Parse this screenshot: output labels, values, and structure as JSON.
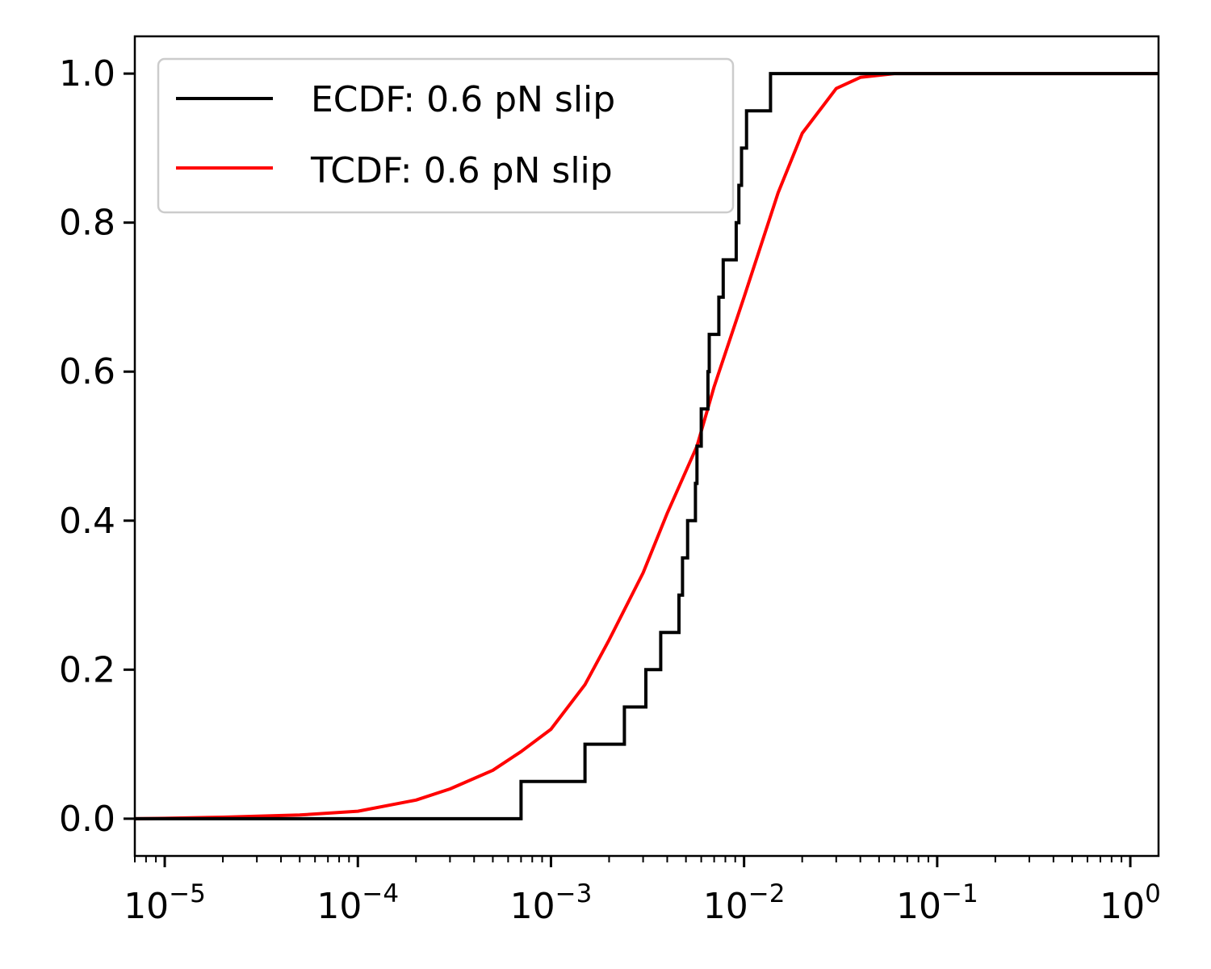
{
  "chart_data": {
    "type": "line",
    "title": "",
    "xlabel": "",
    "ylabel": "",
    "xscale": "log",
    "xlim": [
      7e-06,
      1.4
    ],
    "ylim": [
      -0.05,
      1.05
    ],
    "grid": false,
    "legend_placement": "top-left",
    "x_ticks": [
      {
        "value": 1e-05,
        "base": "10",
        "exp": "−5"
      },
      {
        "value": 0.0001,
        "base": "10",
        "exp": "−4"
      },
      {
        "value": 0.001,
        "base": "10",
        "exp": "−3"
      },
      {
        "value": 0.01,
        "base": "10",
        "exp": "−2"
      },
      {
        "value": 0.1,
        "base": "10",
        "exp": "−1"
      },
      {
        "value": 1,
        "base": "10",
        "exp": "0"
      }
    ],
    "y_ticks": [
      {
        "value": 0.0,
        "label": "0.0"
      },
      {
        "value": 0.2,
        "label": "0.2"
      },
      {
        "value": 0.4,
        "label": "0.4"
      },
      {
        "value": 0.6,
        "label": "0.6"
      },
      {
        "value": 0.8,
        "label": "0.8"
      },
      {
        "value": 1.0,
        "label": "1.0"
      }
    ],
    "series": [
      {
        "name": "ECDF: 0.6 pN slip",
        "color": "#000000",
        "style": "step",
        "x": [
          0.0007,
          0.0015,
          0.0024,
          0.0031,
          0.0037,
          0.0046,
          0.0048,
          0.0051,
          0.0056,
          0.0057,
          0.006,
          0.0065,
          0.0066,
          0.0074,
          0.0078,
          0.0091,
          0.0094,
          0.0097,
          0.0103,
          0.0137
        ],
        "y": [
          0.05,
          0.1,
          0.15,
          0.2,
          0.25,
          0.3,
          0.35,
          0.4,
          0.45,
          0.5,
          0.55,
          0.6,
          0.65,
          0.7,
          0.75,
          0.8,
          0.85,
          0.9,
          0.95,
          1.0
        ]
      },
      {
        "name": "TCDF: 0.6 pN slip",
        "color": "#ff0000",
        "style": "line",
        "x": [
          7e-06,
          1e-05,
          2e-05,
          5e-05,
          0.0001,
          0.0002,
          0.0003,
          0.0005,
          0.0007,
          0.001,
          0.0015,
          0.002,
          0.003,
          0.004,
          0.0057,
          0.007,
          0.01,
          0.015,
          0.02,
          0.03,
          0.04,
          0.06,
          0.1,
          0.2,
          0.5,
          1.0,
          1.4
        ],
        "y": [
          0.0,
          0.0005,
          0.002,
          0.005,
          0.01,
          0.025,
          0.04,
          0.065,
          0.09,
          0.12,
          0.18,
          0.24,
          0.33,
          0.41,
          0.5,
          0.58,
          0.7,
          0.84,
          0.92,
          0.98,
          0.995,
          1.0,
          1.0,
          1.0,
          1.0,
          1.0,
          1.0
        ]
      }
    ]
  }
}
